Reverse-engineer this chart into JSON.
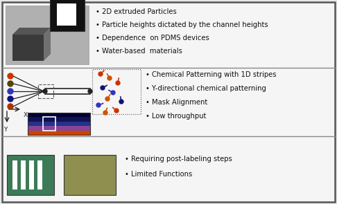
{
  "bg_color": "#e8e8e8",
  "border_color": "#555555",
  "panel_bg": "#f5f5f5",
  "row1_text": [
    "• 2D extruded Particles",
    "• Particle heights dictated by the channel heights",
    "• Dependence  on PDMS devices",
    "• Water-based  materials"
  ],
  "row2_text": [
    "• Chemical Patterning with 1D stripes",
    "• Y-directional chemical patterning",
    "• Mask Alignment",
    "• Low throughput"
  ],
  "row3_text": [
    "• Requiring post-labeling steps",
    "• Limited Functions"
  ],
  "text_color": "#111111",
  "barcode_green": "#3d7a58",
  "barcode_stripe": "#ffffff",
  "olive_color": "#8f8f50",
  "row_divider": "#888888",
  "dot_colors_row2": [
    "#cc3300",
    "#554400",
    "#3333aa",
    "#111166",
    "#aa4400"
  ],
  "stripe_colors_row2": [
    "#cc4400",
    "#884499",
    "#223388",
    "#111155",
    "#000033"
  ],
  "arrow_color": "#222222",
  "photo_bg": "#b0b0b0",
  "cube_dark": "#3a3a3a",
  "cube_mid": "#555555",
  "cube_light": "#707070"
}
